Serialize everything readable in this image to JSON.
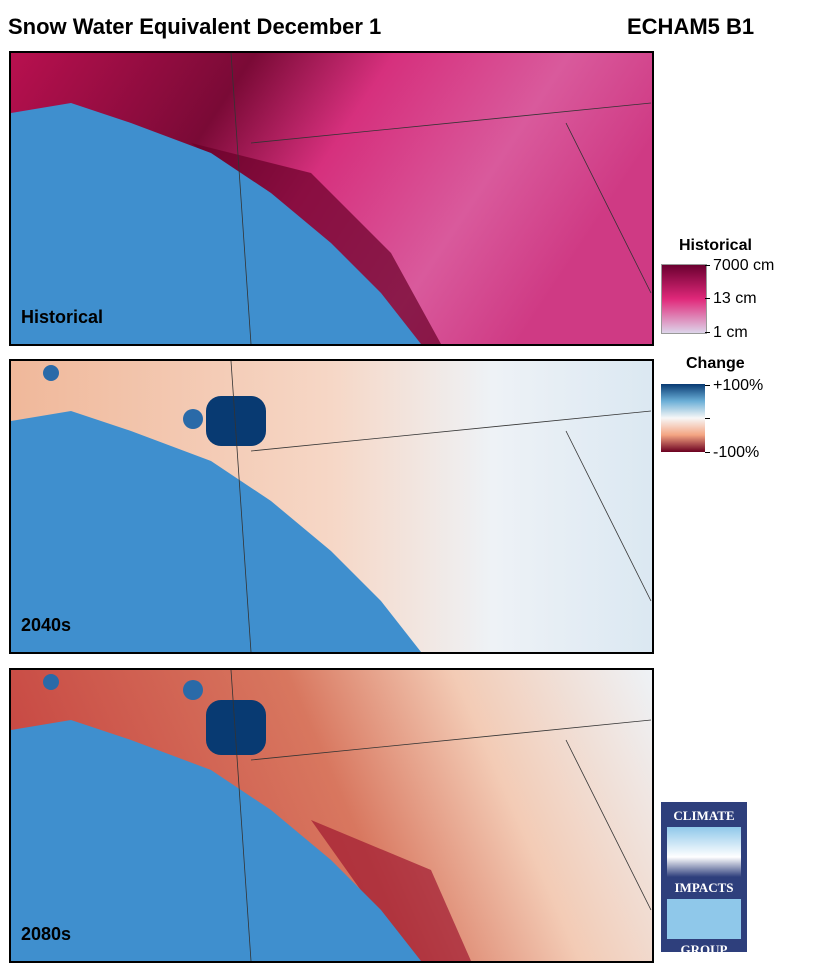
{
  "title": "Snow Water Equivalent December 1",
  "model": "ECHAM5 B1",
  "panels": [
    {
      "label": "Historical",
      "type": "historical"
    },
    {
      "label": "2040s",
      "type": "change"
    },
    {
      "label": "2080s",
      "type": "change"
    }
  ],
  "legend_historical": {
    "title": "Historical",
    "ticks": [
      "7000 cm",
      "13 cm",
      "1 cm"
    ],
    "colors": [
      "#6b0030",
      "#e0287a",
      "#ddd4ea"
    ]
  },
  "legend_change": {
    "title": "Change",
    "ticks": [
      "+100%",
      "",
      "-100%"
    ],
    "colors": [
      "#083a72",
      "#f7f7f7",
      "#6b0020"
    ]
  },
  "ocean_color": "#3f8fce",
  "logo": {
    "lines": [
      "CLIMATE",
      "IMPACTS",
      "GROUP"
    ]
  }
}
